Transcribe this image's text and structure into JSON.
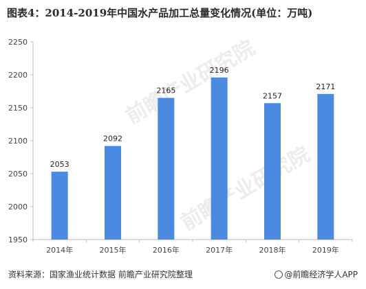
{
  "title": "图表4：2014-2019年中国水产品加工总量变化情况(单位：万吨)",
  "source": "资料来源：国家渔业统计数据 前瞻产业研究院整理",
  "brand": "@前瞻经济学人APP",
  "watermark": "前瞻产业研究院",
  "colors": {
    "bar": "#4a8ae0",
    "axis": "#bbbbbb",
    "grid": "#e4e4e4"
  },
  "chart_data": {
    "type": "bar",
    "title": "图表4：2014-2019年中国水产品加工总量变化情况(单位：万吨)",
    "categories": [
      "2014年",
      "2015年",
      "2016年",
      "2017年",
      "2018年",
      "2019年"
    ],
    "values": [
      2053,
      2092,
      2165,
      2196,
      2157,
      2171
    ],
    "data_labels": [
      "2053",
      "2092",
      "2165",
      "2196",
      "2157",
      "2171"
    ],
    "ylim": [
      1950,
      2250
    ],
    "yticks": [
      1950,
      2000,
      2050,
      2100,
      2150,
      2200,
      2250
    ],
    "ytick_labels": [
      "1950",
      "2000",
      "2050",
      "2100",
      "2150",
      "2200",
      "2250"
    ],
    "xlabel": "",
    "ylabel": "",
    "grid": false,
    "legend": "none"
  }
}
